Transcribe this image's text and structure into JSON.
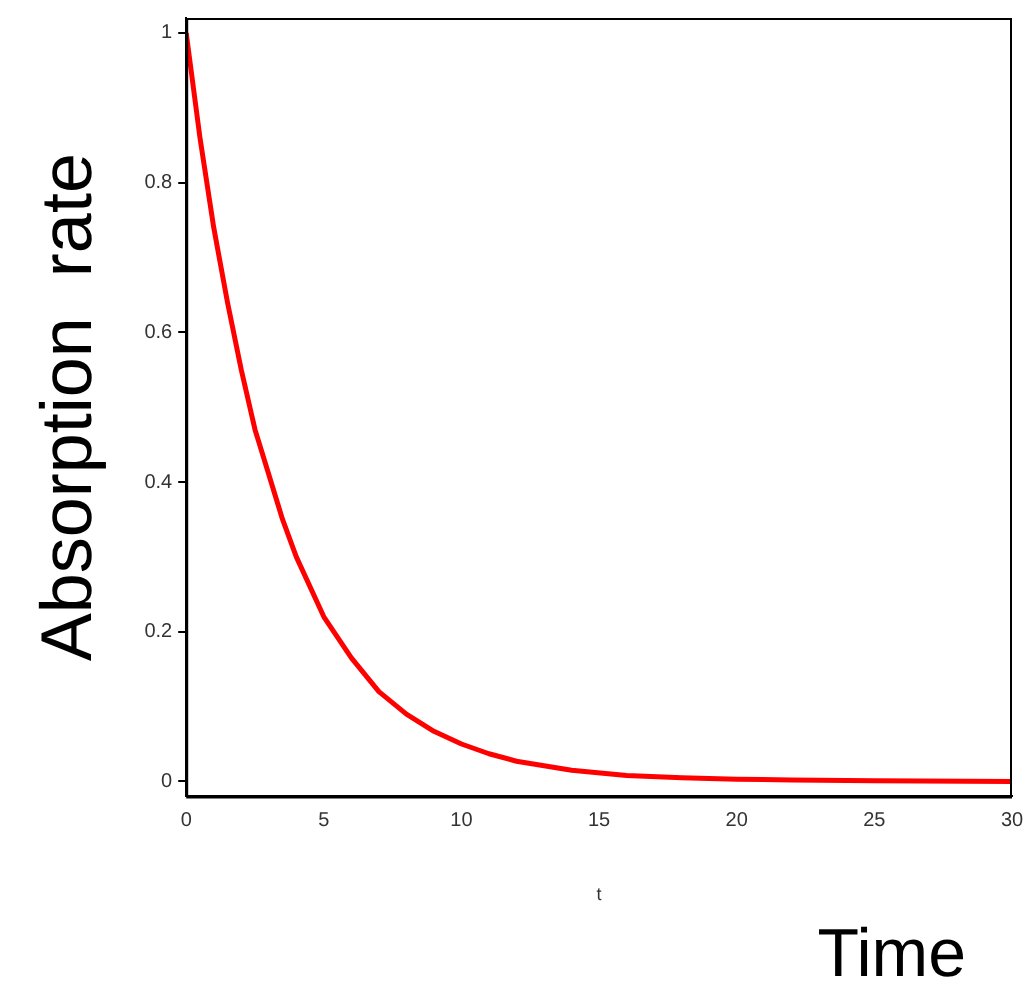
{
  "chart_data": {
    "type": "line",
    "xlabel": "t",
    "ylabel": "Absorption  rate",
    "annotations": [
      "Time"
    ],
    "x": [
      0,
      0.5,
      1,
      1.5,
      2,
      2.5,
      3,
      3.5,
      4,
      5,
      6,
      7,
      8,
      9,
      10,
      11,
      12,
      14,
      16,
      18,
      20,
      22,
      25,
      30
    ],
    "series": [
      {
        "color": "#ff0000",
        "values": [
          1,
          0.86,
          0.74,
          0.64,
          0.55,
          0.47,
          0.41,
          0.35,
          0.3,
          0.22,
          0.165,
          0.12,
          0.09,
          0.067,
          0.05,
          0.037,
          0.027,
          0.015,
          0.008,
          0.005,
          0.003,
          0.002,
          0.001,
          0
        ]
      }
    ],
    "xlim": [
      0,
      30
    ],
    "xticks": [
      0,
      5,
      10,
      15,
      20,
      25,
      30
    ],
    "ylim": [
      -0.02,
      1.02
    ],
    "yticks": [
      0,
      0.2,
      0.4,
      0.6,
      0.8,
      1
    ],
    "grid": false,
    "legend": false,
    "marker": "none",
    "line_style": "solid"
  }
}
